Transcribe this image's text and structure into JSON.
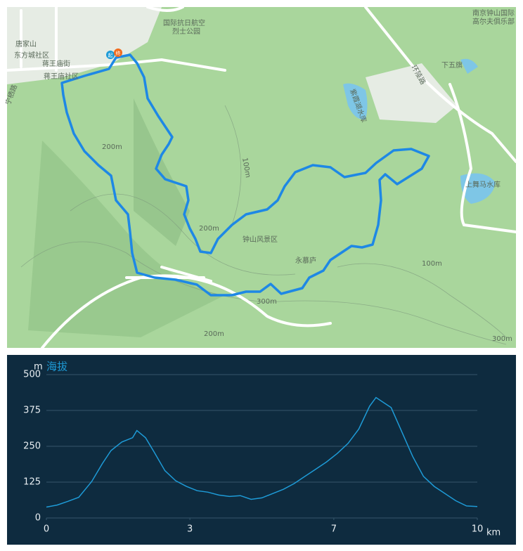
{
  "map": {
    "labels": [
      "唐家山",
      "东方城社区",
      "蒋王庙街",
      "蒋王庙社区",
      "国际抗日航空",
      "烈士公园",
      "南京钟山国际",
      "高尔夫俱乐部",
      "下五旗",
      "紫霞湖水库",
      "上舞马水库",
      "钟山风景区",
      "永慕庐",
      "环陵路",
      "宁栖路",
      "起",
      "终",
      "200m",
      "200m",
      "300m",
      "100m",
      "100m",
      "200m",
      "300m"
    ]
  },
  "chart_data": {
    "type": "line",
    "title": "海拔",
    "y_unit": "m",
    "x_unit": "km",
    "x": [
      0,
      0.25,
      0.5,
      0.75,
      1.05,
      1.3,
      1.5,
      1.75,
      2.0,
      2.1,
      2.3,
      2.5,
      2.75,
      3.0,
      3.25,
      3.5,
      3.75,
      4.0,
      4.25,
      4.5,
      4.75,
      5.0,
      5.25,
      5.5,
      5.75,
      6.0,
      6.25,
      6.5,
      6.75,
      7.0,
      7.25,
      7.5,
      7.65,
      7.75,
      8.0,
      8.25,
      8.5,
      8.75,
      9.0,
      9.25,
      9.5,
      9.75,
      10.0
    ],
    "series": [
      {
        "name": "海拔",
        "color": "#1e9bd7",
        "values": [
          38,
          45,
          58,
          72,
          127,
          190,
          235,
          265,
          280,
          305,
          280,
          230,
          165,
          130,
          110,
          95,
          90,
          80,
          75,
          78,
          65,
          70,
          85,
          100,
          120,
          145,
          170,
          195,
          225,
          260,
          310,
          390,
          420,
          410,
          385,
          300,
          215,
          145,
          110,
          85,
          60,
          42,
          40
        ]
      }
    ],
    "xlim": [
      0,
      10
    ],
    "ylim": [
      0,
      500
    ],
    "xticks": [
      0,
      {
        "value": 3.33,
        "label": "3"
      },
      {
        "value": 6.67,
        "label": "7"
      },
      10
    ],
    "yticks": [
      0,
      125,
      250,
      375,
      500
    ],
    "grid": true
  }
}
